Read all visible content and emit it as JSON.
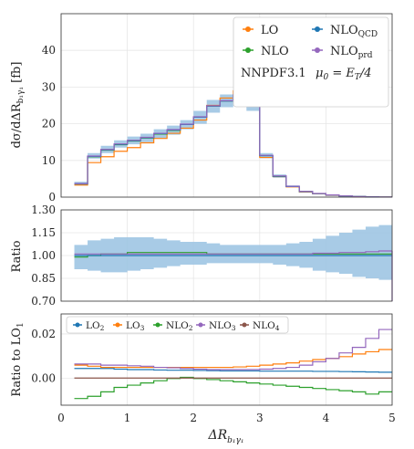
{
  "chart_data": [
    {
      "type": "line",
      "panel": "top",
      "ylabel": "dσ/dΔR_{b1γ1} [fb]",
      "ylim": [
        0,
        50
      ],
      "yticks": [
        0,
        10,
        20,
        30,
        40
      ],
      "xlim": [
        0,
        5
      ],
      "bin_edges": [
        0.2,
        0.4,
        0.6,
        0.8,
        1.0,
        1.2,
        1.4,
        1.6,
        1.8,
        2.0,
        2.2,
        2.4,
        2.6,
        2.8,
        3.0,
        3.2,
        3.4,
        3.6,
        3.8,
        4.0,
        4.2,
        4.4,
        4.6,
        4.8,
        5.0
      ],
      "band": {
        "lo": [
          3.2,
          10.5,
          12.0,
          13.5,
          14.4,
          15.0,
          16.0,
          17.0,
          18.5,
          20.0,
          23.0,
          24.5,
          26.0,
          23.5,
          10.6,
          5.3,
          2.7,
          1.3,
          0.8,
          0.45,
          0.25,
          0.12,
          0.06,
          0.0
        ],
        "hi": [
          4.2,
          12.0,
          14.0,
          15.5,
          16.5,
          17.3,
          18.5,
          19.5,
          21.0,
          23.5,
          26.5,
          28.0,
          29.0,
          27.0,
          12.0,
          6.2,
          3.2,
          1.7,
          1.1,
          0.7,
          0.45,
          0.22,
          0.12,
          0.05
        ],
        "color": "#9fc5e3"
      },
      "series": [
        {
          "name": "LO",
          "color": "#ff7f0e",
          "values": [
            3.3,
            9.4,
            11.0,
            12.5,
            13.5,
            14.8,
            16.0,
            17.4,
            18.8,
            21.0,
            25.0,
            27.0,
            29.0,
            25.0,
            10.8,
            5.6,
            2.8,
            1.4,
            0.9,
            0.5,
            0.25,
            0.12,
            0.06,
            0.02
          ]
        },
        {
          "name": "NLO",
          "color": "#2ca02c",
          "values": [
            3.6,
            11.0,
            12.8,
            14.3,
            15.3,
            16.1,
            17.2,
            18.2,
            19.8,
            21.8,
            24.8,
            26.2,
            27.8,
            25.5,
            11.3,
            5.7,
            2.9,
            1.5,
            0.95,
            0.55,
            0.3,
            0.15,
            0.07,
            0.02
          ]
        },
        {
          "name": "NLO_QCD",
          "color": "#1f77b4",
          "values": [
            3.6,
            11.1,
            12.9,
            14.4,
            15.4,
            16.2,
            17.3,
            18.3,
            19.8,
            21.8,
            24.8,
            26.2,
            27.8,
            25.5,
            11.3,
            5.7,
            2.9,
            1.5,
            0.95,
            0.55,
            0.3,
            0.15,
            0.07,
            0.02
          ]
        },
        {
          "name": "NLO_prd",
          "color": "#9467bd",
          "values": [
            3.7,
            11.2,
            13.0,
            14.5,
            15.5,
            16.3,
            17.4,
            18.4,
            19.9,
            21.9,
            24.9,
            26.3,
            27.9,
            25.6,
            11.4,
            5.8,
            2.95,
            1.55,
            1.0,
            0.6,
            0.32,
            0.16,
            0.08,
            0.03
          ]
        }
      ],
      "legend": {
        "position": "top-right",
        "lines": [
          "NNPDF3.1",
          "μ0 = E_T/4"
        ]
      }
    },
    {
      "type": "line",
      "panel": "middle",
      "ylabel": "Ratio",
      "ylim": [
        0.7,
        1.3
      ],
      "yticks": [
        "0.70",
        "0.85",
        "1.00",
        "1.15",
        "1.30"
      ],
      "band": {
        "lo": [
          0.91,
          0.9,
          0.89,
          0.89,
          0.9,
          0.91,
          0.92,
          0.93,
          0.94,
          0.94,
          0.95,
          0.95,
          0.95,
          0.95,
          0.95,
          0.94,
          0.93,
          0.92,
          0.9,
          0.89,
          0.88,
          0.86,
          0.85,
          0.84
        ],
        "hi": [
          1.07,
          1.1,
          1.11,
          1.12,
          1.12,
          1.12,
          1.11,
          1.1,
          1.09,
          1.09,
          1.08,
          1.07,
          1.07,
          1.07,
          1.07,
          1.07,
          1.08,
          1.09,
          1.11,
          1.13,
          1.15,
          1.17,
          1.19,
          1.2
        ],
        "color": "#9fc5e3"
      },
      "series": [
        {
          "name": "NLO",
          "color": "#2ca02c",
          "values": [
            0.99,
            1.0,
            1.01,
            1.01,
            1.02,
            1.02,
            1.02,
            1.02,
            1.02,
            1.02,
            1.01,
            1.01,
            1.01,
            1.01,
            1.01,
            1.01,
            1.01,
            1.01,
            1.01,
            1.01,
            1.01,
            1.01,
            1.01,
            1.01
          ]
        },
        {
          "name": "NLO_QCD",
          "color": "#1f77b4",
          "values": [
            1.0,
            1.0,
            1.0,
            1.0,
            1.0,
            1.0,
            1.0,
            1.0,
            1.0,
            1.0,
            1.0,
            1.0,
            1.0,
            1.0,
            1.0,
            1.0,
            1.0,
            1.0,
            1.0,
            1.0,
            1.0,
            1.0,
            1.0,
            1.0
          ]
        },
        {
          "name": "NLO_prd",
          "color": "#9467bd",
          "values": [
            1.01,
            1.01,
            1.01,
            1.01,
            1.01,
            1.01,
            1.01,
            1.01,
            1.01,
            1.01,
            1.01,
            1.01,
            1.01,
            1.01,
            1.01,
            1.01,
            1.01,
            1.01,
            1.015,
            1.015,
            1.02,
            1.02,
            1.025,
            1.03
          ]
        }
      ]
    },
    {
      "type": "line",
      "panel": "bottom",
      "ylabel": "Ratio to LO1",
      "xlabel": "ΔR_{b1γ1}",
      "ylim": [
        -0.012,
        0.029
      ],
      "yticks": [
        "0.00",
        "0.02"
      ],
      "xticks": [
        0,
        1,
        2,
        3,
        4,
        5
      ],
      "series": [
        {
          "name": "LO2",
          "color": "#1f77b4",
          "values": [
            0.0045,
            0.0045,
            0.0045,
            0.0042,
            0.004,
            0.004,
            0.0038,
            0.0037,
            0.0037,
            0.0036,
            0.0035,
            0.0034,
            0.0034,
            0.0034,
            0.0033,
            0.0033,
            0.0033,
            0.0033,
            0.0032,
            0.0032,
            0.0031,
            0.003,
            0.0029,
            0.0028
          ]
        },
        {
          "name": "LO3",
          "color": "#ff7f0e",
          "values": [
            0.006,
            0.0055,
            0.005,
            0.005,
            0.005,
            0.005,
            0.005,
            0.005,
            0.005,
            0.005,
            0.005,
            0.005,
            0.0052,
            0.0055,
            0.006,
            0.0065,
            0.007,
            0.0078,
            0.0085,
            0.009,
            0.0098,
            0.011,
            0.012,
            0.013
          ]
        },
        {
          "name": "NLO2",
          "color": "#2ca02c",
          "values": [
            -0.009,
            -0.008,
            -0.006,
            -0.004,
            -0.003,
            -0.002,
            -0.001,
            0.0,
            0.0005,
            0.0,
            -0.0005,
            -0.001,
            -0.0015,
            -0.002,
            -0.0025,
            -0.003,
            -0.0035,
            -0.004,
            -0.0045,
            -0.005,
            -0.0055,
            -0.006,
            -0.007,
            -0.006
          ]
        },
        {
          "name": "NLO3",
          "color": "#9467bd",
          "values": [
            0.0065,
            0.0065,
            0.006,
            0.006,
            0.0057,
            0.0055,
            0.005,
            0.0048,
            0.0045,
            0.0042,
            0.004,
            0.004,
            0.004,
            0.004,
            0.0042,
            0.0045,
            0.005,
            0.006,
            0.0075,
            0.009,
            0.0115,
            0.014,
            0.018,
            0.022
          ]
        },
        {
          "name": "NLO4",
          "color": "#8c564b",
          "values": [
            0.0002,
            0.0002,
            0.0002,
            0.0002,
            0.0002,
            0.0002,
            0.0002,
            0.0002,
            0.0002,
            0.0002,
            0.0002,
            0.0002,
            0.0002,
            0.0002,
            0.0002,
            0.0002,
            0.0002,
            0.0002,
            0.0002,
            0.0002,
            0.0002,
            0.0002,
            0.0002,
            0.0002
          ]
        }
      ],
      "legend": {
        "position": "top-left"
      }
    }
  ]
}
